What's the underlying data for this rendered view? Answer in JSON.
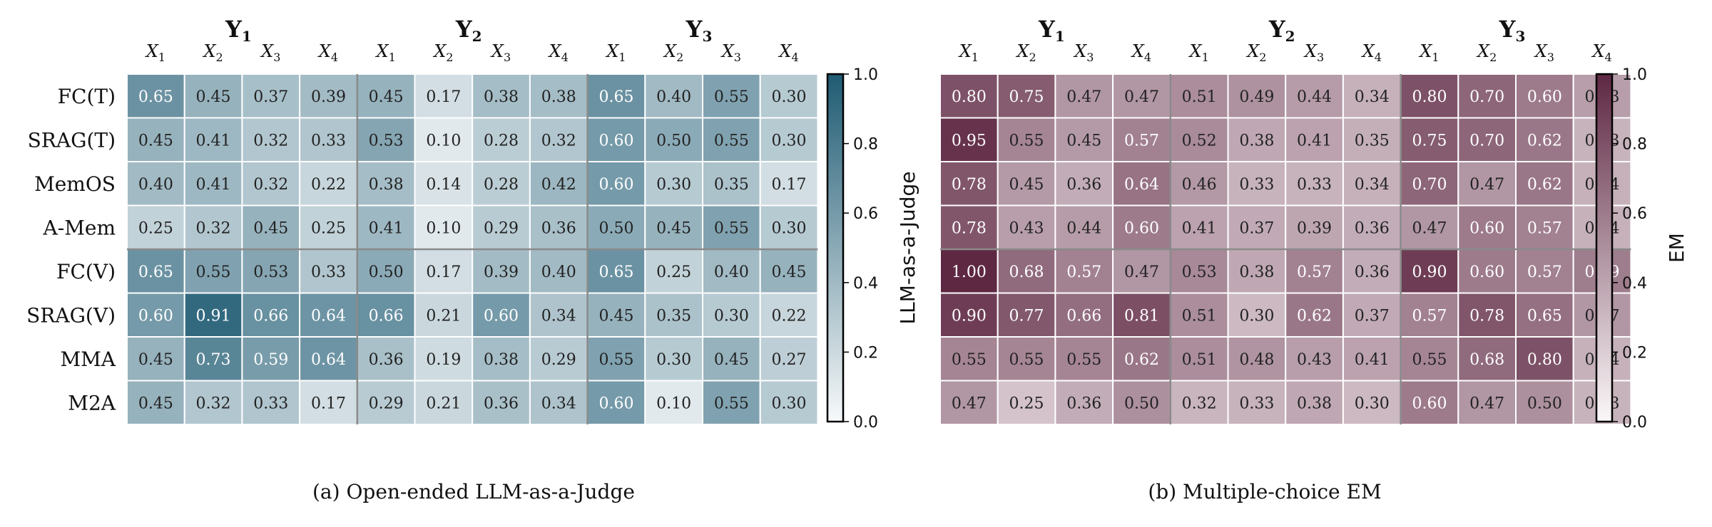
{
  "chart_data": [
    {
      "type": "heatmap",
      "caption": "(a) Open-ended LLM-as-a-Judge",
      "colorbar_label": "LLM-as-a-Judge",
      "colorbar_ticks": [
        "0.0",
        "0.2",
        "0.4",
        "0.6",
        "0.8",
        "1.0"
      ],
      "vmin": 0.0,
      "vmax": 1.0,
      "colormap": [
        "#f7f9fa",
        "#1f5b73"
      ],
      "row_labels": [
        "FC(T)",
        "SRAG(T)",
        "MemOS",
        "A-Mem",
        "FC(V)",
        "SRAG(V)",
        "MMA",
        "M2A"
      ],
      "groups": [
        {
          "name": "Y",
          "sub": "1"
        },
        {
          "name": "Y",
          "sub": "2"
        },
        {
          "name": "Y",
          "sub": "3"
        }
      ],
      "columns": [
        {
          "name": "X",
          "sub": "1"
        },
        {
          "name": "X",
          "sub": "2"
        },
        {
          "name": "X",
          "sub": "3"
        },
        {
          "name": "X",
          "sub": "4"
        }
      ],
      "values": [
        [
          "0.65",
          "0.45",
          "0.37",
          "0.39",
          "0.45",
          "0.17",
          "0.38",
          "0.38",
          "0.65",
          "0.40",
          "0.55",
          "0.30"
        ],
        [
          "0.45",
          "0.41",
          "0.32",
          "0.33",
          "0.53",
          "0.10",
          "0.28",
          "0.32",
          "0.60",
          "0.50",
          "0.55",
          "0.30"
        ],
        [
          "0.40",
          "0.41",
          "0.32",
          "0.22",
          "0.38",
          "0.14",
          "0.28",
          "0.42",
          "0.60",
          "0.30",
          "0.35",
          "0.17"
        ],
        [
          "0.25",
          "0.32",
          "0.45",
          "0.25",
          "0.41",
          "0.10",
          "0.29",
          "0.36",
          "0.50",
          "0.45",
          "0.55",
          "0.30"
        ],
        [
          "0.65",
          "0.55",
          "0.53",
          "0.33",
          "0.50",
          "0.17",
          "0.39",
          "0.40",
          "0.65",
          "0.25",
          "0.40",
          "0.45"
        ],
        [
          "0.60",
          "0.91",
          "0.66",
          "0.64",
          "0.66",
          "0.21",
          "0.60",
          "0.34",
          "0.45",
          "0.35",
          "0.30",
          "0.22"
        ],
        [
          "0.45",
          "0.73",
          "0.59",
          "0.64",
          "0.36",
          "0.19",
          "0.38",
          "0.29",
          "0.55",
          "0.30",
          "0.45",
          "0.27"
        ],
        [
          "0.45",
          "0.32",
          "0.33",
          "0.17",
          "0.29",
          "0.21",
          "0.36",
          "0.34",
          "0.60",
          "0.10",
          "0.55",
          "0.30"
        ]
      ]
    },
    {
      "type": "heatmap",
      "caption": "(b) Multiple-choice EM",
      "colorbar_label": "EM",
      "colorbar_ticks": [
        "0.0",
        "0.2",
        "0.4",
        "0.6",
        "0.8",
        "1.0"
      ],
      "vmin": 0.0,
      "vmax": 1.0,
      "colormap": [
        "#fbf7f8",
        "#5e2843"
      ],
      "row_labels": [],
      "groups": [
        {
          "name": "Y",
          "sub": "1"
        },
        {
          "name": "Y",
          "sub": "2"
        },
        {
          "name": "Y",
          "sub": "3"
        }
      ],
      "columns": [
        {
          "name": "X",
          "sub": "1"
        },
        {
          "name": "X",
          "sub": "2"
        },
        {
          "name": "X",
          "sub": "3"
        },
        {
          "name": "X",
          "sub": "4"
        }
      ],
      "values": [
        [
          "0.80",
          "0.75",
          "0.47",
          "0.47",
          "0.51",
          "0.49",
          "0.44",
          "0.34",
          "0.80",
          "0.70",
          "0.60",
          "0.43"
        ],
        [
          "0.95",
          "0.55",
          "0.45",
          "0.57",
          "0.52",
          "0.38",
          "0.41",
          "0.35",
          "0.75",
          "0.70",
          "0.62",
          "0.33"
        ],
        [
          "0.78",
          "0.45",
          "0.36",
          "0.64",
          "0.46",
          "0.33",
          "0.33",
          "0.34",
          "0.70",
          "0.47",
          "0.62",
          "0.34"
        ],
        [
          "0.78",
          "0.43",
          "0.44",
          "0.60",
          "0.41",
          "0.37",
          "0.39",
          "0.36",
          "0.47",
          "0.60",
          "0.57",
          "0.34"
        ],
        [
          "1.00",
          "0.68",
          "0.57",
          "0.47",
          "0.53",
          "0.38",
          "0.57",
          "0.36",
          "0.90",
          "0.60",
          "0.57",
          "0.59"
        ],
        [
          "0.90",
          "0.77",
          "0.66",
          "0.81",
          "0.51",
          "0.30",
          "0.62",
          "0.37",
          "0.57",
          "0.78",
          "0.65",
          "0.47"
        ],
        [
          "0.55",
          "0.55",
          "0.55",
          "0.62",
          "0.51",
          "0.48",
          "0.43",
          "0.41",
          "0.55",
          "0.68",
          "0.80",
          "0.34"
        ],
        [
          "0.47",
          "0.25",
          "0.36",
          "0.50",
          "0.32",
          "0.33",
          "0.38",
          "0.30",
          "0.60",
          "0.47",
          "0.50",
          "0.33"
        ]
      ]
    }
  ]
}
